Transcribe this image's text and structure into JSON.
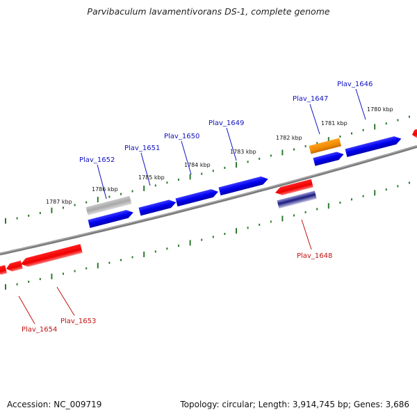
{
  "title": "Parvibaculum lavamentivorans DS-1, complete genome",
  "accession": "Accession: NC_009719",
  "topology": "Topology: circular; Length: 3,914,745 bp; Genes: 3,686",
  "colors": {
    "forward": "#0000ee",
    "reverse": "#ee0000",
    "grey_gene": "#b0b0b0",
    "orange_gene": "#f08c00",
    "navy_gene": "#1a1a80",
    "backbone": "#7a7a7a",
    "ruler": "#2a7a2a",
    "label_forward": "#1010c0",
    "label_reverse": "#c01010"
  },
  "kbp_labels": [
    "1787 kbp",
    "1786 kbp",
    "1785 kbp",
    "1784 kbp",
    "1783 kbp",
    "1782 kbp",
    "1781 kbp",
    "1780 kbp"
  ],
  "forward_genes": [
    {
      "id": "g-grey",
      "color": "grey",
      "label": ""
    },
    {
      "id": "g-1652",
      "color": "forward",
      "label": "Plav_1652"
    },
    {
      "id": "g-1651",
      "color": "forward",
      "label": "Plav_1651"
    },
    {
      "id": "g-1650",
      "color": "forward",
      "label": "Plav_1650"
    },
    {
      "id": "g-1649",
      "color": "forward",
      "label": "Plav_1649"
    },
    {
      "id": "g-1647",
      "color": "orange",
      "label": "Plav_1647"
    },
    {
      "id": "g-1647b",
      "color": "forward",
      "label": ""
    },
    {
      "id": "g-1646",
      "color": "forward",
      "label": "Plav_1646"
    }
  ],
  "reverse_genes": [
    {
      "id": "g-1648",
      "color": "reverse",
      "label": "Plav_1648"
    },
    {
      "id": "g-1648b",
      "color": "navy",
      "label": ""
    },
    {
      "id": "g-1653",
      "color": "reverse",
      "label": "Plav_1653"
    },
    {
      "id": "g-1654",
      "color": "reverse",
      "label": "Plav_1654"
    },
    {
      "id": "g-1655",
      "color": "reverse",
      "label": ""
    }
  ],
  "labels": {
    "plav_1646": "Plav_1646",
    "plav_1647": "Plav_1647",
    "plav_1648": "Plav_1648",
    "plav_1649": "Plav_1649",
    "plav_1650": "Plav_1650",
    "plav_1651": "Plav_1651",
    "plav_1652": "Plav_1652",
    "plav_1653": "Plav_1653",
    "plav_1654": "Plav_1654"
  }
}
